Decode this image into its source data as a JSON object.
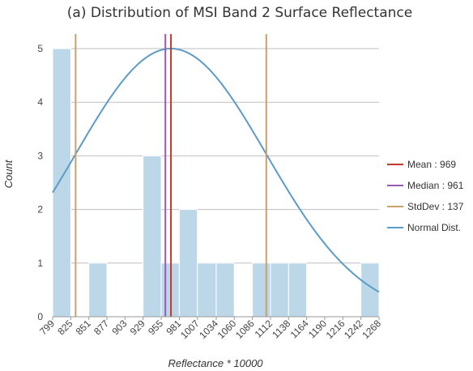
{
  "chart_data": {
    "type": "bar",
    "title": "(a) Distribution of MSI Band 2 Surface Reflectance",
    "xlabel": "Reflectance * 10000",
    "ylabel": "Count",
    "ylim": [
      0,
      5
    ],
    "yticks": [
      "0",
      "1",
      "2",
      "3",
      "4",
      "5"
    ],
    "xlim": [
      799,
      1268
    ],
    "xtick_values": [
      799,
      825,
      851,
      877,
      903,
      929,
      955,
      981,
      1007,
      1034,
      1060,
      1086,
      1112,
      1138,
      1164,
      1190,
      1216,
      1242,
      1268
    ],
    "xtick_labels": [
      "799",
      "825",
      "851",
      "877",
      "903",
      "929",
      "955",
      "981",
      "1007",
      "1034",
      "1060",
      "1086",
      "1112",
      "1138",
      "1164",
      "1190",
      "1216",
      "1242",
      "1268"
    ],
    "grid": true,
    "legend_position": "right",
    "bins": [
      {
        "start": 799,
        "end": 825,
        "count": 5
      },
      {
        "start": 851,
        "end": 877,
        "count": 1
      },
      {
        "start": 929,
        "end": 955,
        "count": 3
      },
      {
        "start": 955,
        "end": 981,
        "count": 1
      },
      {
        "start": 981,
        "end": 1007,
        "count": 2
      },
      {
        "start": 1007,
        "end": 1034,
        "count": 1
      },
      {
        "start": 1034,
        "end": 1060,
        "count": 1
      },
      {
        "start": 1086,
        "end": 1112,
        "count": 1
      },
      {
        "start": 1112,
        "end": 1138,
        "count": 1
      },
      {
        "start": 1138,
        "end": 1164,
        "count": 1
      },
      {
        "start": 1242,
        "end": 1268,
        "count": 1
      }
    ],
    "stats": {
      "mean": 969,
      "median": 961,
      "stddev": 137
    },
    "stddev_lines": [
      832,
      1106
    ],
    "normal_peak": 5,
    "legend": [
      {
        "key": "mean",
        "label": "Mean : 969",
        "color": "#c0392b"
      },
      {
        "key": "median",
        "label": "Median : 961",
        "color": "#9b59b6"
      },
      {
        "key": "stddev",
        "label": "StdDev : 137",
        "color": "#c8a06a"
      },
      {
        "key": "normal",
        "label": "Normal Dist.",
        "color": "#5b9bc8"
      }
    ],
    "colors": {
      "bar_fill": "#bcd8e8",
      "bar_stroke": "#ffffff",
      "grid": "#bfbfbf",
      "axis": "#999999"
    }
  }
}
